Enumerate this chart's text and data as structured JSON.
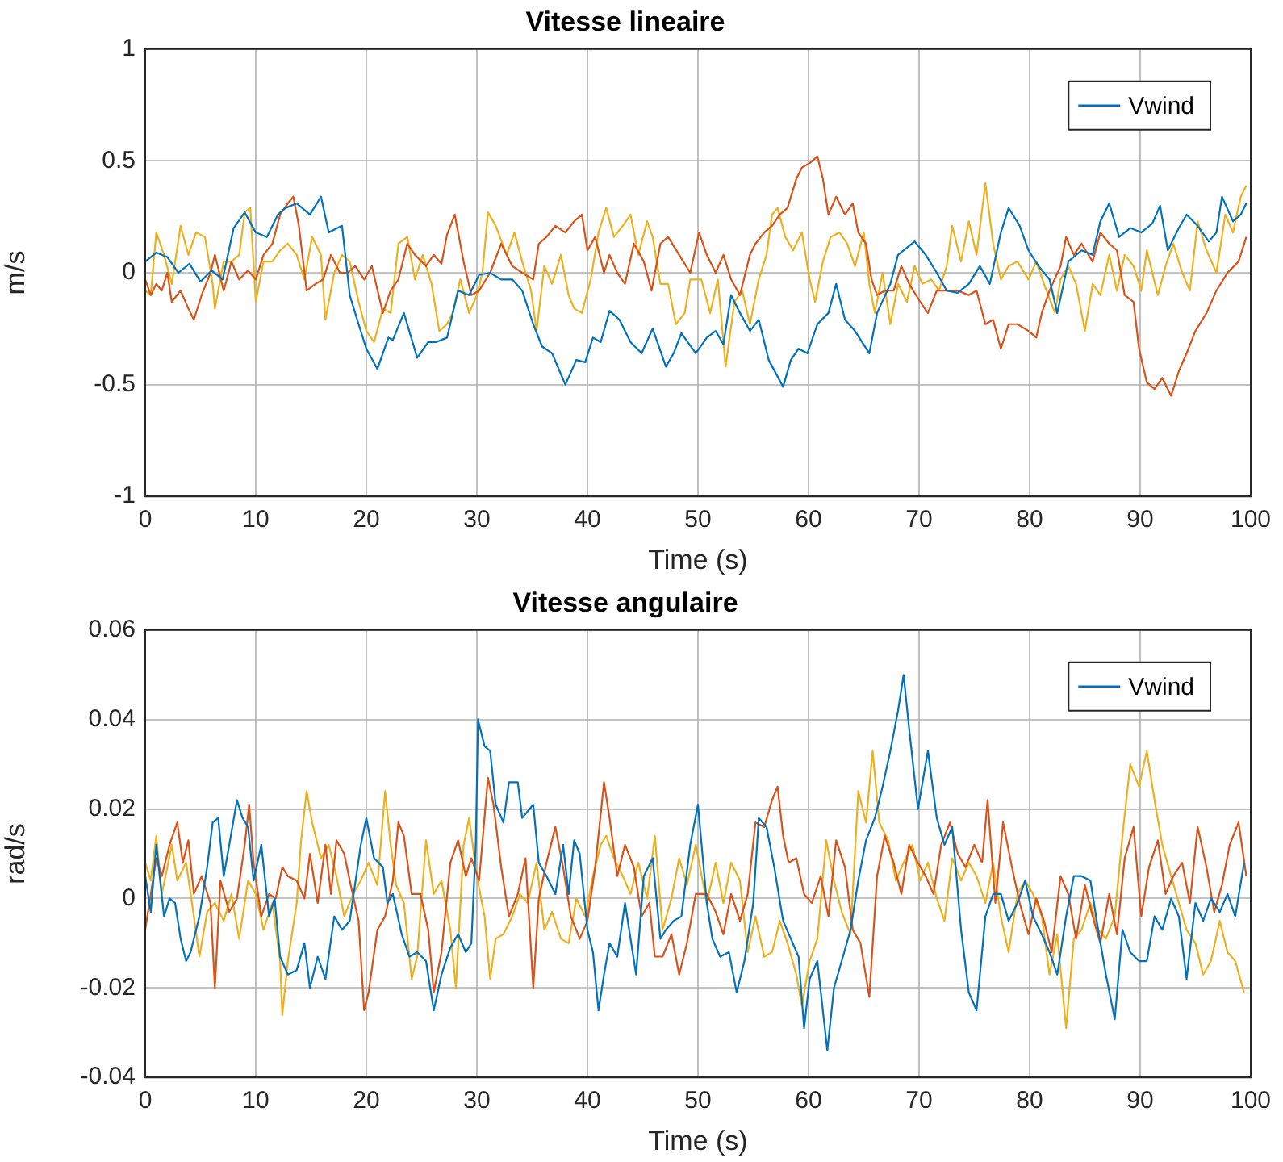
{
  "chart_data": [
    {
      "type": "line",
      "title": "Vitesse lineaire",
      "xlabel": "Time (s)",
      "ylabel": "m/s",
      "xlim": [
        0,
        100
      ],
      "xticks": [
        0,
        10,
        20,
        30,
        40,
        50,
        60,
        70,
        80,
        90,
        100
      ],
      "ylim": [
        -1,
        1
      ],
      "yticks": [
        -1,
        -0.5,
        0,
        0.5,
        1
      ],
      "grid": true,
      "legend": "top right",
      "series": [
        {
          "name": "Vwind",
          "color": "#0072bd",
          "x": [
            0,
            1,
            2,
            3,
            4,
            5,
            6,
            7,
            8,
            9,
            10,
            11,
            12,
            12.7,
            13.7,
            14.9,
            15.9,
            16.6,
            17.8,
            18.5,
            19.3,
            20,
            21,
            22,
            22.4,
            23.4,
            24.6,
            25.6,
            26.3,
            27.3,
            28.3,
            29.3,
            30.2,
            31.2,
            32.2,
            33.2,
            34.1,
            35.1,
            35.9,
            36.8,
            38,
            39,
            39.8,
            40.5,
            41.2,
            42,
            42.9,
            43.9,
            44.9,
            45.9,
            47.1,
            47.8,
            48.5,
            49.8,
            50.8,
            51.6,
            52.3,
            53,
            53.8,
            54.7,
            55.5,
            56.4,
            57.7,
            58.4,
            59.1,
            59.9,
            60.8,
            61.8,
            62.5,
            63.3,
            64.2,
            65.5,
            66.2,
            67.4,
            68.1,
            69.6,
            70.6,
            71.6,
            72.5,
            73.5,
            74.5,
            75.5,
            76.4,
            77.4,
            78.1,
            79.1,
            79.9,
            80.8,
            81.8,
            82.5,
            83.5,
            84.7,
            85.7,
            86.4,
            87.2,
            88.1,
            89.1,
            90.1,
            91.1,
            91.8,
            92.5,
            93.5,
            94.2,
            95.2,
            96.2,
            96.9,
            97.4,
            98.4,
            99.1,
            99.6
          ],
          "values": [
            0.05,
            0.09,
            0.07,
            0.0,
            0.04,
            -0.04,
            0.01,
            -0.03,
            0.2,
            0.27,
            0.18,
            0.16,
            0.26,
            0.29,
            0.31,
            0.26,
            0.34,
            0.18,
            0.21,
            -0.1,
            -0.23,
            -0.34,
            -0.43,
            -0.29,
            -0.3,
            -0.18,
            -0.38,
            -0.31,
            -0.31,
            -0.29,
            -0.08,
            -0.1,
            -0.01,
            0,
            -0.03,
            -0.03,
            -0.08,
            -0.23,
            -0.33,
            -0.36,
            -0.5,
            -0.39,
            -0.4,
            -0.29,
            -0.31,
            -0.17,
            -0.21,
            -0.31,
            -0.36,
            -0.25,
            -0.42,
            -0.36,
            -0.27,
            -0.36,
            -0.29,
            -0.26,
            -0.32,
            -0.1,
            -0.18,
            -0.26,
            -0.21,
            -0.39,
            -0.51,
            -0.39,
            -0.34,
            -0.36,
            -0.23,
            -0.18,
            -0.05,
            -0.21,
            -0.26,
            -0.36,
            -0.18,
            -0.05,
            0.08,
            0.14,
            0.08,
            0,
            -0.08,
            -0.09,
            -0.05,
            0.03,
            -0.05,
            0.18,
            0.29,
            0.21,
            0.1,
            0.03,
            -0.03,
            -0.18,
            0.05,
            0.1,
            0.08,
            0.23,
            0.31,
            0.16,
            0.2,
            0.18,
            0.22,
            0.3,
            0.1,
            0.2,
            0.26,
            0.21,
            0.14,
            0.18,
            0.34,
            0.23,
            0.26,
            0.31
          ]
        },
        {
          "color": "#d95319",
          "x": [
            0,
            0.5,
            1,
            1.5,
            2,
            2.4,
            3.2,
            3.9,
            4.4,
            5.1,
            5.9,
            6.3,
            7.1,
            7.8,
            8.5,
            9.3,
            10,
            10.7,
            11.5,
            12.2,
            12.9,
            13.4,
            13.9,
            14.6,
            15.4,
            16.1,
            16.8,
            17.6,
            18.3,
            19,
            19.8,
            20.5,
            21.5,
            22.2,
            22.9,
            23.7,
            24.4,
            25.4,
            26.1,
            26.8,
            27.3,
            28,
            28.8,
            29.5,
            30.2,
            31.2,
            32.2,
            33.2,
            34.1,
            35.1,
            35.6,
            36.3,
            37.1,
            38,
            38.8,
            39.5,
            40,
            40.7,
            41.5,
            42,
            42.7,
            43.4,
            44.2,
            45.1,
            45.8,
            46.6,
            47.3,
            48.3,
            49.3,
            50.1,
            50.8,
            51.6,
            52.3,
            53,
            53.8,
            54.7,
            55.2,
            56,
            56.7,
            57.4,
            58.1,
            58.9,
            59.4,
            60.1,
            60.8,
            61.3,
            61.8,
            62.5,
            63.3,
            64,
            64.5,
            65.2,
            65.7,
            66.2,
            66.9,
            67.7,
            68.4,
            69.1,
            70.1,
            70.8,
            71.6,
            72.5,
            73.5,
            74.5,
            75.2,
            76,
            76.7,
            77.4,
            78.1,
            78.9,
            79.9,
            80.6,
            81.1,
            81.8,
            82.8,
            83.3,
            84,
            84.7,
            85.7,
            86.4,
            87.2,
            87.9,
            88.6,
            89.4,
            89.9,
            90.6,
            91.3,
            92,
            92.8,
            93.5,
            94.2,
            95,
            96,
            96.9,
            97.9,
            98.9,
            99.6
          ],
          "values": [
            -0.03,
            -0.1,
            -0.05,
            -0.08,
            0,
            -0.13,
            -0.08,
            -0.16,
            -0.21,
            -0.1,
            0,
            0.08,
            -0.08,
            0.05,
            -0.03,
            0.01,
            -0.03,
            0.08,
            0.13,
            0.26,
            0.31,
            0.34,
            0.21,
            -0.08,
            -0.05,
            -0.03,
            0.08,
            0,
            0,
            0.03,
            -0.03,
            0.03,
            -0.18,
            -0.08,
            -0.03,
            0.13,
            0.08,
            0.03,
            0.08,
            0.04,
            0.17,
            0.26,
            0.05,
            -0.1,
            -0.08,
            0,
            0.13,
            0.03,
            0,
            -0.03,
            0.13,
            0.16,
            0.21,
            0.18,
            0.23,
            0.26,
            0.1,
            0.16,
            0,
            0.08,
            0,
            -0.05,
            0.13,
            0.05,
            -0.08,
            0.13,
            0.16,
            0.08,
            0,
            0.18,
            0.08,
            0,
            0.08,
            -0.03,
            -0.1,
            0.08,
            0.13,
            0.18,
            0.21,
            0.26,
            0.29,
            0.42,
            0.47,
            0.49,
            0.52,
            0.42,
            0.26,
            0.34,
            0.26,
            0.31,
            0.18,
            0.13,
            -0.03,
            -0.1,
            -0.08,
            -0.08,
            0.03,
            -0.05,
            -0.13,
            -0.18,
            -0.08,
            -0.08,
            -0.08,
            -0.1,
            -0.08,
            -0.23,
            -0.21,
            -0.34,
            -0.23,
            -0.23,
            -0.26,
            -0.29,
            -0.18,
            -0.08,
            0.03,
            0.16,
            0.08,
            0.13,
            0.05,
            0.18,
            0.13,
            0.1,
            -0.1,
            -0.13,
            -0.34,
            -0.49,
            -0.52,
            -0.47,
            -0.55,
            -0.44,
            -0.36,
            -0.26,
            -0.18,
            -0.08,
            0,
            0.05,
            0.16
          ]
        },
        {
          "color": "#edb120",
          "x": [
            0,
            0.5,
            1,
            1.7,
            2.4,
            3.2,
            3.9,
            4.6,
            5.4,
            6.1,
            6.3,
            7.1,
            7.8,
            8.5,
            9,
            9.5,
            10,
            10.7,
            11.5,
            12.2,
            12.9,
            13.7,
            14.4,
            15.1,
            15.9,
            16.3,
            17.1,
            17.8,
            18.5,
            19.3,
            20,
            20.7,
            21.5,
            22.2,
            22.9,
            23.7,
            24.4,
            25.1,
            25.9,
            26.6,
            27.3,
            27.8,
            28.5,
            29.3,
            30,
            30.5,
            31,
            31.7,
            32.7,
            33.4,
            34.1,
            34.9,
            35.4,
            36.1,
            36.8,
            37.6,
            38.3,
            38.8,
            39.5,
            40.3,
            41,
            41.7,
            42.4,
            43.2,
            43.9,
            44.6,
            45.4,
            45.9,
            46.6,
            47.3,
            48,
            48.8,
            49.3,
            50.3,
            51.1,
            51.8,
            52.5,
            53.3,
            54,
            54.7,
            55.5,
            56.2,
            56.7,
            57.2,
            57.9,
            58.6,
            59.4,
            60.1,
            60.6,
            61.3,
            62,
            62.8,
            63.5,
            64.2,
            65,
            65.5,
            66,
            66.7,
            67.4,
            68.1,
            68.9,
            69.6,
            70.3,
            71.1,
            71.8,
            72.5,
            73,
            73.8,
            74.5,
            75.2,
            76,
            76.7,
            77.4,
            78.1,
            78.9,
            79.9,
            80.6,
            81.3,
            82.3,
            82.8,
            83.5,
            84.2,
            85,
            85.7,
            86.4,
            87.2,
            87.9,
            88.6,
            89.4,
            90.1,
            90.6,
            91.6,
            92.3,
            93,
            93.8,
            94.5,
            95.2,
            96,
            96.9,
            97.7,
            98.4,
            99.1,
            99.6
          ],
          "values": [
            -0.08,
            -0.1,
            0.18,
            0.08,
            -0.05,
            0.21,
            0.08,
            0.18,
            0.16,
            -0.05,
            -0.16,
            0.05,
            0.05,
            0.08,
            0.27,
            0.29,
            -0.13,
            0.05,
            0.05,
            0.1,
            0.13,
            0.08,
            -0.03,
            0.16,
            0.08,
            -0.21,
            0,
            0.08,
            0.05,
            -0.13,
            -0.26,
            -0.31,
            -0.16,
            -0.18,
            0.13,
            0.16,
            -0.03,
            0.08,
            -0.05,
            -0.26,
            -0.23,
            -0.18,
            -0.03,
            -0.18,
            -0.1,
            0,
            0.27,
            0.21,
            0.08,
            0.18,
            0.05,
            -0.08,
            -0.26,
            0.03,
            -0.05,
            0.08,
            -0.1,
            -0.16,
            -0.18,
            -0.03,
            0.18,
            0.29,
            0.16,
            0.21,
            0.26,
            0.08,
            0.23,
            0.16,
            -0.05,
            -0.05,
            -0.23,
            -0.18,
            -0.03,
            -0.03,
            -0.18,
            -0.03,
            -0.42,
            -0.13,
            -0.08,
            -0.23,
            -0.03,
            0.08,
            0.26,
            0.29,
            0.16,
            0.1,
            0.18,
            -0.03,
            -0.13,
            0.05,
            0.16,
            0.18,
            0.13,
            0.03,
            0.18,
            -0.05,
            -0.18,
            0,
            -0.23,
            -0.05,
            -0.13,
            0.03,
            -0.05,
            -0.03,
            -0.08,
            0.03,
            0.21,
            0.05,
            0.23,
            0.08,
            0.4,
            0.13,
            -0.03,
            0.03,
            0.05,
            -0.03,
            0.05,
            -0.05,
            -0.18,
            -0.03,
            0.03,
            -0.05,
            -0.26,
            -0.05,
            -0.1,
            0.08,
            -0.08,
            0.08,
            0.03,
            -0.08,
            0.1,
            -0.1,
            0.03,
            0.13,
            0,
            -0.08,
            0.23,
            0.1,
            0,
            0.26,
            0.18,
            0.34,
            0.39
          ]
        }
      ]
    },
    {
      "type": "line",
      "title": "Vitesse angulaire",
      "xlabel": "Time (s)",
      "ylabel": "rad/s",
      "xlim": [
        0,
        100
      ],
      "xticks": [
        0,
        10,
        20,
        30,
        40,
        50,
        60,
        70,
        80,
        90,
        100
      ],
      "ylim": [
        -0.04,
        0.06
      ],
      "yticks": [
        -0.04,
        -0.02,
        0,
        0.02,
        0.04,
        0.06
      ],
      "grid": true,
      "legend": "top right",
      "series": [
        {
          "name": "Vwind",
          "color": "#0072bd",
          "x": [
            0,
            0.5,
            1,
            1.7,
            2.2,
            2.7,
            3.2,
            3.7,
            4.1,
            4.9,
            5.6,
            6.1,
            6.6,
            7.1,
            7.6,
            8.3,
            8.8,
            9.3,
            9.8,
            10.5,
            11.2,
            11.7,
            12.2,
            12.9,
            13.7,
            14.4,
            14.9,
            15.6,
            16.3,
            17.1,
            17.8,
            18.5,
            19.5,
            20,
            20.7,
            21.5,
            21.9,
            22.4,
            23.2,
            23.9,
            24.6,
            25.4,
            26.1,
            26.8,
            27.6,
            28.3,
            29,
            29.5,
            29.9,
            30.1,
            30.7,
            31.2,
            31.7,
            32.4,
            32.9,
            33.7,
            34.1,
            35.1,
            35.6,
            36.3,
            37.1,
            37.8,
            38.3,
            38.8,
            39.3,
            40,
            40.5,
            41,
            41.5,
            42,
            42.7,
            43.4,
            44.4,
            45.1,
            45.9,
            46.6,
            47.1,
            47.8,
            48.5,
            49.3,
            50,
            50.8,
            51.3,
            52,
            52.8,
            53.5,
            54.2,
            55,
            55.5,
            56.2,
            56.9,
            57.7,
            58.4,
            59.1,
            59.6,
            60.1,
            60.8,
            61.7,
            62.3,
            63,
            63.8,
            64.5,
            65.2,
            66,
            66.7,
            67.4,
            68.1,
            68.6,
            69.1,
            69.9,
            70.8,
            71.6,
            72.3,
            73,
            73.8,
            74.5,
            75.2,
            76,
            76.7,
            77.4,
            78.1,
            78.9,
            79.6,
            80.3,
            81.1,
            81.8,
            82.5,
            83.3,
            84,
            84.7,
            85.5,
            86.2,
            86.9,
            87.7,
            88.4,
            89.1,
            89.9,
            90.6,
            91.3,
            92,
            92.8,
            93.5,
            94.2,
            95,
            95.7,
            96.4,
            97.2,
            97.9,
            98.6,
            99.4
          ],
          "values": [
            0.005,
            -0.003,
            0.012,
            -0.004,
            0,
            -0.001,
            -0.009,
            -0.014,
            -0.012,
            -0.004,
            0.007,
            0.017,
            0.018,
            0.005,
            0.012,
            0.022,
            0.018,
            0.016,
            0.004,
            0.012,
            -0.004,
            0,
            -0.013,
            -0.017,
            -0.016,
            -0.01,
            -0.02,
            -0.013,
            -0.018,
            -0.004,
            -0.007,
            -0.005,
            0.012,
            0.018,
            0.009,
            0.007,
            -0.001,
            0.001,
            -0.008,
            -0.013,
            -0.012,
            -0.014,
            -0.025,
            -0.017,
            -0.011,
            -0.008,
            -0.012,
            -0.01,
            0.012,
            0.04,
            0.034,
            0.033,
            0.021,
            0.017,
            0.026,
            0.026,
            0.018,
            0.021,
            0.008,
            0.005,
            0.001,
            0.012,
            0.001,
            0.013,
            0.01,
            -0.007,
            -0.012,
            -0.025,
            -0.017,
            -0.01,
            -0.013,
            -0.001,
            -0.017,
            0.005,
            0.009,
            -0.009,
            -0.007,
            -0.005,
            -0.004,
            0.012,
            0.021,
            -0.001,
            -0.009,
            -0.013,
            -0.012,
            -0.021,
            -0.014,
            -0.001,
            0.018,
            0.016,
            0.007,
            -0.005,
            -0.009,
            -0.013,
            -0.029,
            -0.018,
            -0.014,
            -0.034,
            -0.02,
            -0.014,
            -0.007,
            0.004,
            0.013,
            0.018,
            0.025,
            0.033,
            0.042,
            0.05,
            0.038,
            0.02,
            0.033,
            0.018,
            0.012,
            0.016,
            -0.007,
            -0.021,
            -0.025,
            -0.004,
            0.001,
            0.001,
            -0.005,
            -0.001,
            0.004,
            -0.004,
            -0.008,
            -0.012,
            -0.017,
            -0.004,
            0.005,
            0.005,
            0.004,
            -0.007,
            -0.017,
            -0.027,
            -0.007,
            -0.012,
            -0.014,
            -0.014,
            -0.004,
            -0.007,
            0,
            -0.004,
            -0.018,
            -0.001,
            -0.005,
            0,
            -0.003,
            0.001,
            -0.004,
            0.008
          ]
        },
        {
          "color": "#d95319",
          "x": [
            0,
            0.5,
            1,
            1.5,
            2.2,
            2.9,
            3.4,
            3.9,
            4.4,
            5.1,
            5.9,
            6.3,
            6.8,
            7.6,
            8.3,
            9,
            9.4,
            9.8,
            10.5,
            11.2,
            11.8,
            12.4,
            12.9,
            13.7,
            14.4,
            14.9,
            15.6,
            16.3,
            16.8,
            17.3,
            18,
            18.5,
            19.3,
            19.8,
            20.2,
            21,
            21.7,
            22.4,
            22.9,
            23.4,
            24.1,
            24.9,
            25.6,
            26.1,
            26.8,
            27.6,
            28.3,
            29,
            29.5,
            30.2,
            31,
            31.5,
            32.2,
            32.9,
            33.7,
            34.4,
            35.1,
            35.6,
            36.3,
            37.1,
            37.8,
            38.5,
            39.3,
            40,
            40.7,
            41.5,
            42,
            42.7,
            43.4,
            44.2,
            44.9,
            45.6,
            46.1,
            46.8,
            47.6,
            48.3,
            49,
            49.8,
            50.8,
            51.6,
            52.3,
            53,
            53.8,
            54.5,
            55.2,
            56,
            56.7,
            57.2,
            57.7,
            58.2,
            58.9,
            59.6,
            60.3,
            61.1,
            61.8,
            62.5,
            63.3,
            64,
            64.7,
            65.5,
            66.2,
            66.9,
            67.7,
            68.4,
            69.1,
            69.9,
            70.6,
            71.3,
            72,
            72.8,
            73.5,
            74.2,
            75,
            75.7,
            76.2,
            76.9,
            77.6,
            78.4,
            79.1,
            79.9,
            80.6,
            81.3,
            82,
            82.8,
            83.5,
            84.2,
            85,
            85.7,
            86.4,
            87.2,
            87.9,
            88.6,
            89.4,
            90.1,
            90.8,
            91.6,
            92.3,
            93,
            93.8,
            94.5,
            95.2,
            96,
            96.7,
            97.4,
            98.1,
            98.9,
            99.6
          ],
          "values": [
            -0.007,
            0.001,
            0.009,
            0.005,
            0.012,
            0.017,
            0.008,
            0.013,
            0.001,
            0.005,
            -0.001,
            -0.02,
            0.004,
            -0.003,
            0,
            0.012,
            0.021,
            0.008,
            -0.004,
            0.001,
            0,
            0.007,
            0.005,
            0.004,
            0,
            0.01,
            -0.001,
            0.012,
            0.001,
            0.013,
            0.01,
            0.004,
            -0.005,
            -0.025,
            -0.021,
            -0.007,
            -0.004,
            0.004,
            0.017,
            0.014,
            0.001,
            0.001,
            -0.007,
            -0.021,
            -0.012,
            0.008,
            0.013,
            0.005,
            0.009,
            0.004,
            0.027,
            0.021,
            0.007,
            -0.004,
            0.001,
            0.009,
            -0.02,
            0,
            0.008,
            0.016,
            0.007,
            -0.004,
            -0.009,
            -0.005,
            0.007,
            0.026,
            0.018,
            0.005,
            0.012,
            0.007,
            -0.004,
            -0.001,
            -0.013,
            -0.013,
            -0.008,
            -0.017,
            -0.01,
            0.001,
            0.001,
            -0.003,
            -0.008,
            0.001,
            -0.005,
            0.001,
            0.017,
            0.016,
            0.022,
            0.025,
            0.014,
            0.008,
            0.009,
            0.001,
            -0.001,
            0.005,
            -0.004,
            0.013,
            0.007,
            -0.007,
            -0.01,
            -0.022,
            0.005,
            0.014,
            0.008,
            0.001,
            0.012,
            0.008,
            0.005,
            0.001,
            0.012,
            0.017,
            0.01,
            0.007,
            0.012,
            0.008,
            0.022,
            -0.001,
            0.017,
            0.007,
            -0.001,
            -0.008,
            0,
            -0.005,
            -0.012,
            0.005,
            0.001,
            -0.009,
            0.003,
            -0.004,
            -0.01,
            0.001,
            -0.008,
            0.009,
            0.016,
            -0.004,
            0.007,
            0.013,
            0.001,
            0.005,
            0.008,
            -0.001,
            0.016,
            0.007,
            -0.003,
            0.003,
            0.012,
            0.017,
            0.005
          ]
        },
        {
          "color": "#edb120",
          "x": [
            0,
            0.5,
            1,
            1.5,
            2,
            2.4,
            2.9,
            3.7,
            4.4,
            4.9,
            5.6,
            6.3,
            7.1,
            7.8,
            8.5,
            9.3,
            10,
            10.7,
            11.5,
            12.2,
            12.4,
            12.9,
            13.7,
            14.1,
            14.6,
            15.1,
            15.9,
            16.6,
            17.3,
            18,
            18.8,
            19.5,
            20.2,
            21,
            21.7,
            22.2,
            22.7,
            23.4,
            24.1,
            24.6,
            25.4,
            26.1,
            26.8,
            27.6,
            28.1,
            28.8,
            29.3,
            30,
            30.7,
            31.2,
            31.7,
            32.4,
            33.2,
            33.9,
            34.6,
            35.4,
            36.1,
            36.8,
            37.6,
            38.3,
            39,
            39.8,
            40.5,
            41.2,
            41.7,
            42.4,
            43.2,
            43.9,
            44.6,
            45.4,
            46.1,
            46.8,
            47.6,
            48.3,
            49,
            49.8,
            50.8,
            51.6,
            52.3,
            53,
            53.8,
            54.5,
            55.2,
            56,
            56.7,
            57.4,
            58.1,
            58.9,
            59.4,
            60.1,
            60.8,
            61.6,
            62.3,
            63,
            63.8,
            64.5,
            65.2,
            65.8,
            66.4,
            67.2,
            67.9,
            68.6,
            69.4,
            70.1,
            70.8,
            71.6,
            72.3,
            73,
            73.8,
            74.5,
            75.2,
            76,
            76.7,
            77.4,
            78.1,
            78.9,
            79.6,
            80.3,
            81.1,
            81.8,
            82.5,
            83.3,
            84,
            84.7,
            85.5,
            86.2,
            86.9,
            87.7,
            88.4,
            89.1,
            89.9,
            90.6,
            91.3,
            92,
            92.8,
            93.5,
            94.2,
            95,
            95.7,
            96.4,
            97.2,
            97.9,
            98.6,
            99.4
          ],
          "values": [
            0.008,
            0.004,
            0.014,
            0.001,
            0.007,
            0.012,
            0.004,
            0.008,
            -0.004,
            -0.013,
            -0.003,
            -0.001,
            -0.005,
            0.001,
            -0.009,
            0.004,
            0.001,
            -0.007,
            -0.001,
            -0.014,
            -0.026,
            -0.014,
            -0.001,
            0.013,
            0.024,
            0.017,
            0.009,
            0.012,
            0.005,
            -0.004,
            0.001,
            0.004,
            0.008,
            0.003,
            0.024,
            0.012,
            0.003,
            -0.001,
            -0.018,
            -0.013,
            0.013,
            0.001,
            0.004,
            -0.007,
            -0.02,
            0.012,
            0.018,
            0.005,
            -0.004,
            -0.018,
            -0.009,
            -0.008,
            -0.004,
            0.001,
            -0.001,
            0.008,
            -0.007,
            -0.003,
            -0.009,
            -0.01,
            0,
            -0.004,
            0.005,
            0.012,
            0.014,
            0.009,
            0.005,
            0.001,
            0.008,
            0,
            0.014,
            -0.007,
            0,
            0.009,
            0.003,
            0.012,
            -0.001,
            0.008,
            -0.001,
            0.008,
            0.004,
            -0.012,
            -0.004,
            -0.013,
            -0.012,
            -0.005,
            -0.01,
            -0.017,
            -0.024,
            -0.014,
            -0.009,
            0.013,
            0.004,
            -0.003,
            -0.008,
            0.024,
            0.017,
            0.033,
            0.017,
            0.013,
            0.004,
            0.008,
            0.012,
            0.004,
            0.008,
            0,
            -0.005,
            0.009,
            0.004,
            0.008,
            0.005,
            -0.001,
            0.008,
            -0.004,
            -0.012,
            0.001,
            0.004,
            0.001,
            -0.004,
            -0.017,
            -0.008,
            -0.029,
            -0.009,
            -0.007,
            -0.001,
            -0.007,
            -0.009,
            -0.004,
            0.014,
            0.03,
            0.025,
            0.033,
            0.022,
            0.012,
            0.005,
            -0.001,
            -0.007,
            -0.01,
            -0.017,
            -0.014,
            -0.005,
            -0.012,
            -0.014,
            -0.021
          ]
        }
      ]
    }
  ]
}
